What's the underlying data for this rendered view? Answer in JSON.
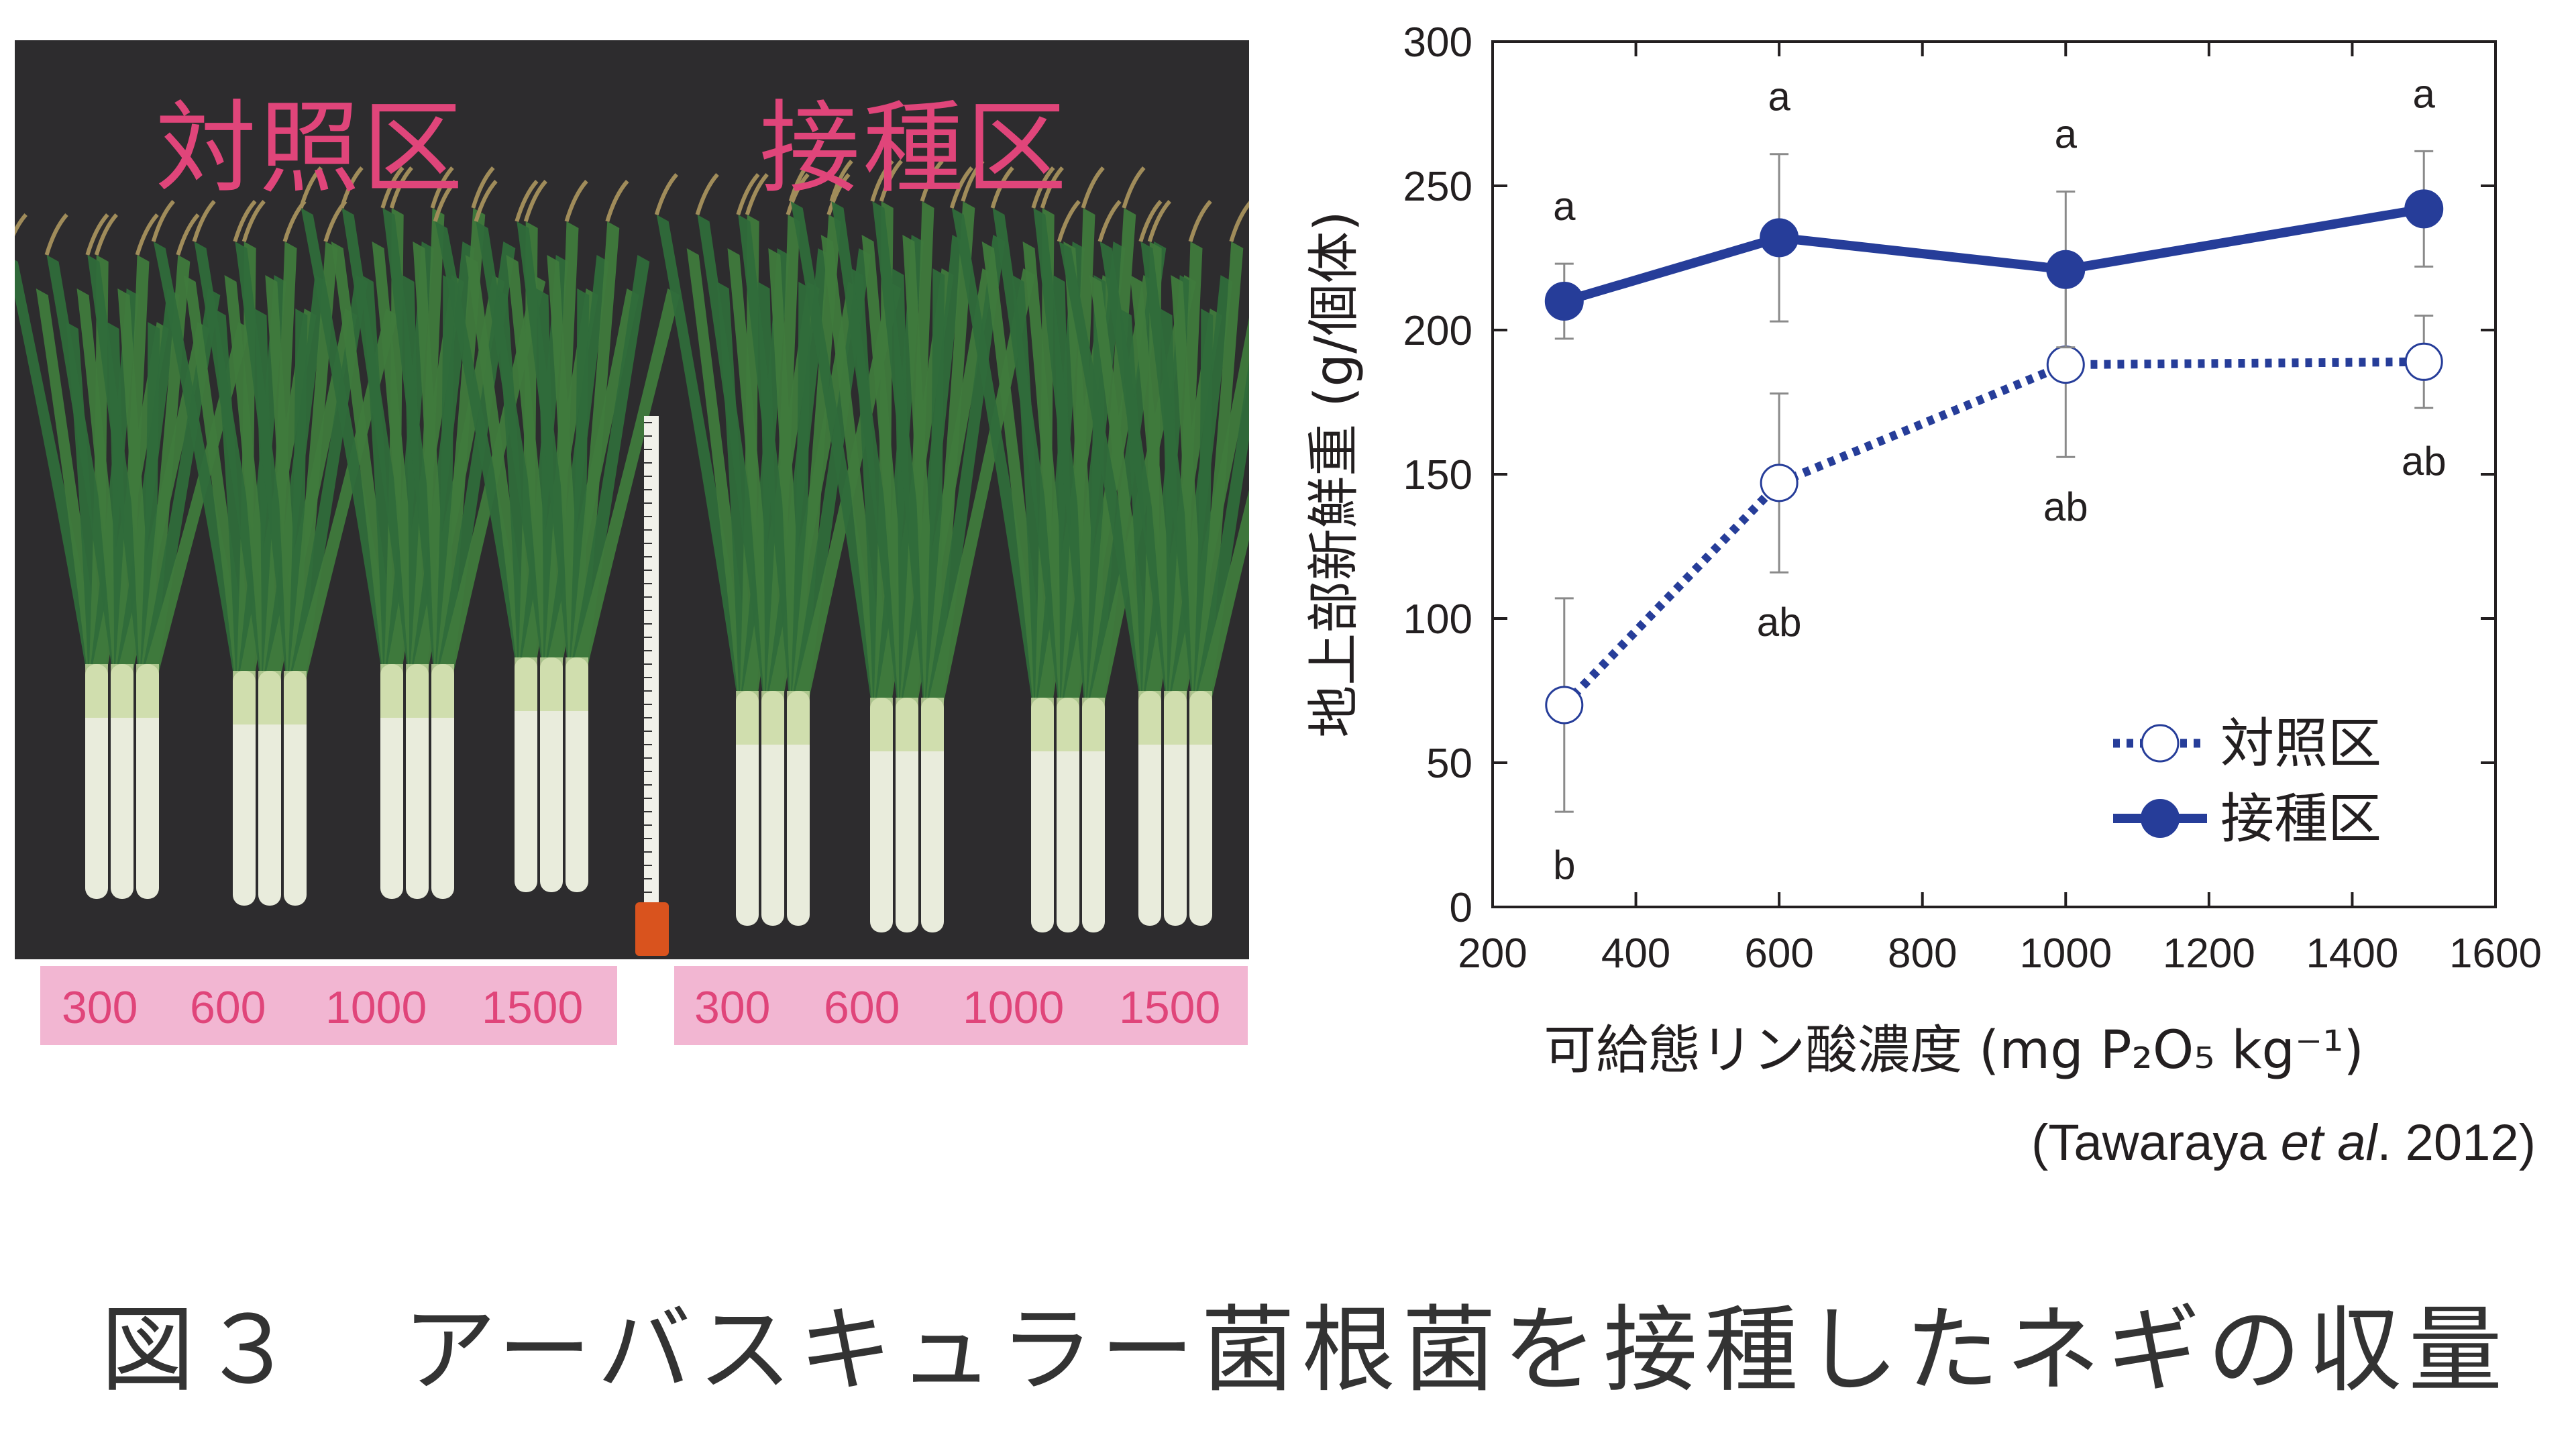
{
  "photo": {
    "group_labels": [
      "対照区",
      "接種区"
    ],
    "control_concentrations": [
      "300",
      "600",
      "1000",
      "1500"
    ],
    "inoculated_concentrations": [
      "300",
      "600",
      "1000",
      "1500"
    ]
  },
  "colors": {
    "series": "#263d99",
    "label_pink": "#e0457a",
    "strip_pink": "#f2b6d2",
    "photo_bg": "#2d2c2e"
  },
  "chart_data": {
    "type": "line",
    "ylabel": "地上部新鮮重 (g/個体)",
    "xlabel": "可給態リン酸濃度 (mg P₂O₅ kg⁻¹)",
    "xlim": [
      200,
      1600
    ],
    "ylim": [
      0,
      300
    ],
    "xticks": [
      200,
      400,
      600,
      800,
      1000,
      1200,
      1400,
      1600
    ],
    "yticks": [
      0,
      50,
      100,
      150,
      200,
      250,
      300
    ],
    "x": [
      300,
      600,
      1000,
      1500
    ],
    "series": [
      {
        "name": "対照区",
        "values": [
          70,
          147,
          188,
          189
        ],
        "error": [
          37,
          31,
          32,
          16
        ],
        "letters": [
          "b",
          "ab",
          "ab",
          "ab"
        ],
        "style": "dotted, open circles"
      },
      {
        "name": "接種区",
        "values": [
          210,
          232,
          221,
          242
        ],
        "error": [
          13,
          29,
          27,
          20
        ],
        "letters": [
          "a",
          "a",
          "a",
          "a"
        ],
        "style": "solid, filled circles"
      }
    ],
    "legend_position": "bottom-right",
    "grid": false
  },
  "citation": {
    "open": "(Tawaraya ",
    "etal": "et al",
    "close": ". 2012)"
  },
  "caption": "図３　アーバスキュラー菌根菌を接種したネギの収量"
}
